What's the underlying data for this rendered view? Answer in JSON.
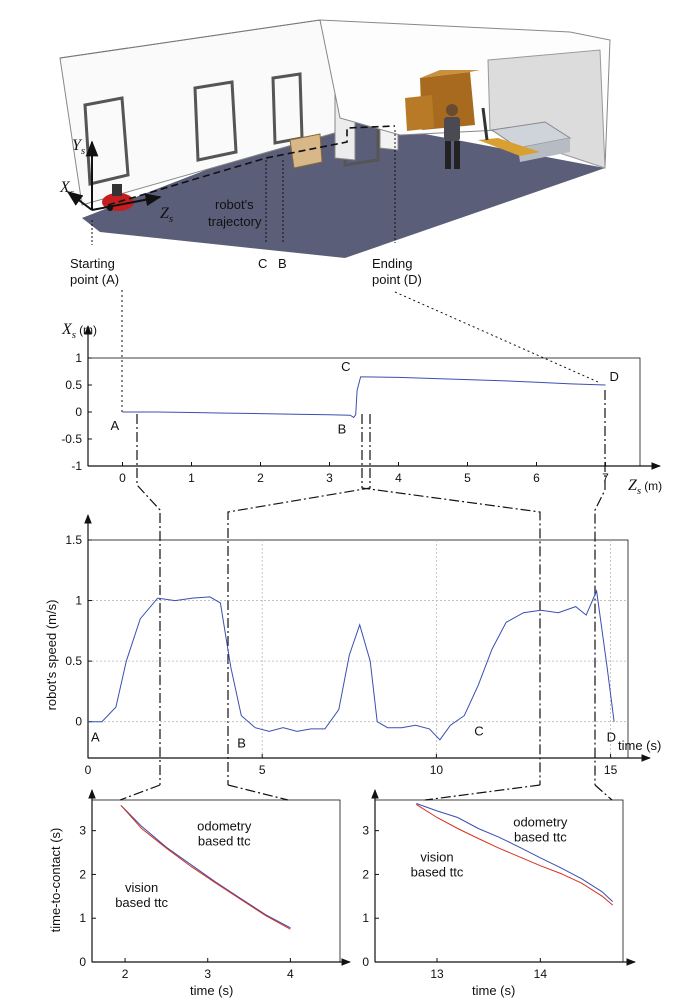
{
  "scene": {
    "axis_labels": {
      "x_base": "X",
      "y_base": "Y",
      "z_base": "Z",
      "subscript": "s"
    },
    "labels": {
      "trajectory_line1": "robot's",
      "trajectory_line2": "trajectory",
      "c": "C",
      "b": "B",
      "start_line1": "Starting",
      "start_line2": "point (A)",
      "end_line1": "Ending",
      "end_line2": "point (D)"
    }
  },
  "chart_data": [
    {
      "type": "line",
      "xlabel_base": "Z",
      "xlabel_sub": "s",
      "xlabel_unit": "(m)",
      "ylabel_base": "X",
      "ylabel_sub": "s",
      "ylabel_unit": "(m)",
      "xlim": [
        -0.5,
        7.5
      ],
      "ylim": [
        -1,
        1
      ],
      "xticks": [
        0,
        1,
        2,
        3,
        4,
        5,
        6,
        7
      ],
      "yticks": [
        -1,
        -0.5,
        0,
        0.5,
        1
      ],
      "grid": false,
      "series": [
        {
          "color": "#3a4fb0",
          "x": [
            0,
            0.5,
            1,
            1.5,
            2,
            2.5,
            3,
            3.3,
            3.35,
            3.38,
            3.4,
            3.45,
            3.5,
            4,
            4.5,
            5,
            5.5,
            6,
            6.5,
            7
          ],
          "y": [
            0,
            0,
            -0.01,
            -0.02,
            -0.03,
            -0.04,
            -0.05,
            -0.06,
            -0.1,
            -0.05,
            0.4,
            0.65,
            0.65,
            0.64,
            0.62,
            0.6,
            0.58,
            0.55,
            0.52,
            0.5
          ]
        }
      ],
      "annotations": [
        {
          "text": "A",
          "x": 0,
          "y": 0
        },
        {
          "text": "B",
          "x": 3.35,
          "y": -0.1
        },
        {
          "text": "C",
          "x": 3.4,
          "y": 0.65
        },
        {
          "text": "D",
          "x": 7,
          "y": 0.5
        }
      ]
    },
    {
      "type": "line",
      "xlabel": "time (s)",
      "ylabel": "robot's speed (m/s)",
      "xlim": [
        0,
        15.5
      ],
      "ylim": [
        -0.3,
        1.5
      ],
      "xticks": [
        0,
        5,
        10,
        15
      ],
      "yticks": [
        0,
        0.5,
        1,
        1.5
      ],
      "grid": true,
      "series": [
        {
          "color": "#3a4fb0",
          "x": [
            0,
            0.4,
            0.8,
            1.1,
            1.5,
            2,
            2.5,
            3,
            3.5,
            3.8,
            4.1,
            4.4,
            4.8,
            5.2,
            5.6,
            6,
            6.4,
            6.8,
            7.2,
            7.5,
            7.8,
            8.1,
            8.3,
            8.6,
            9,
            9.4,
            9.8,
            10.1,
            10.4,
            10.8,
            11.2,
            11.6,
            12,
            12.5,
            13,
            13.5,
            14,
            14.3,
            14.6,
            14.9,
            15.1
          ],
          "y": [
            0,
            0,
            0.12,
            0.5,
            0.85,
            1.02,
            1.0,
            1.02,
            1.03,
            0.98,
            0.45,
            0.05,
            -0.05,
            -0.08,
            -0.05,
            -0.08,
            -0.06,
            -0.06,
            0.1,
            0.55,
            0.8,
            0.5,
            0.0,
            -0.05,
            -0.05,
            -0.03,
            -0.06,
            -0.15,
            -0.03,
            0.05,
            0.3,
            0.6,
            0.82,
            0.9,
            0.92,
            0.9,
            0.95,
            0.88,
            1.08,
            0.45,
            0.0
          ]
        }
      ],
      "annotations": [
        {
          "text": "A",
          "x": 0.2,
          "y": 0
        },
        {
          "text": "B",
          "x": 4.4,
          "y": -0.05
        },
        {
          "text": "C",
          "x": 11.2,
          "y": 0.05
        },
        {
          "text": "D",
          "x": 15.0,
          "y": 0
        }
      ],
      "axis_end_label": "time (s)"
    },
    {
      "type": "line",
      "xlabel": "time (s)",
      "ylabel": "time-to-contact (s)",
      "xlim": [
        1.6,
        4.6
      ],
      "ylim": [
        0,
        3.7
      ],
      "xticks": [
        2,
        3,
        4
      ],
      "yticks": [
        0,
        1,
        2,
        3
      ],
      "grid": false,
      "series": [
        {
          "name": "odometry based ttc",
          "color": "#3a4fb0",
          "x": [
            1.95,
            2.2,
            2.5,
            2.8,
            3.1,
            3.4,
            3.7,
            4.0
          ],
          "y": [
            3.58,
            3.1,
            2.62,
            2.22,
            1.82,
            1.45,
            1.08,
            0.78
          ]
        },
        {
          "name": "vision based ttc",
          "color": "#d83020",
          "x": [
            1.95,
            2.2,
            2.5,
            2.8,
            3.1,
            3.4,
            3.7,
            4.0
          ],
          "y": [
            3.58,
            3.05,
            2.6,
            2.18,
            1.8,
            1.43,
            1.06,
            0.75
          ]
        }
      ],
      "annotations": [
        {
          "text_line1": "odometry",
          "text_line2": "based ttc",
          "x": 3.2,
          "y": 3.0
        },
        {
          "text_line1": "vision",
          "text_line2": "based ttc",
          "x": 2.2,
          "y": 1.6
        }
      ]
    },
    {
      "type": "line",
      "xlabel": "time (s)",
      "ylabel": "",
      "xlim": [
        12.4,
        14.8
      ],
      "ylim": [
        0,
        3.7
      ],
      "xticks": [
        13,
        14
      ],
      "yticks": [
        0,
        1,
        2,
        3
      ],
      "grid": false,
      "series": [
        {
          "name": "odometry based ttc",
          "color": "#3a4fb0",
          "x": [
            12.8,
            13.0,
            13.2,
            13.4,
            13.6,
            13.8,
            14.0,
            14.2,
            14.4,
            14.6,
            14.7
          ],
          "y": [
            3.62,
            3.45,
            3.3,
            3.05,
            2.85,
            2.62,
            2.38,
            2.15,
            1.9,
            1.6,
            1.38
          ]
        },
        {
          "name": "vision based ttc",
          "color": "#d83020",
          "x": [
            12.8,
            13.0,
            13.2,
            13.4,
            13.6,
            13.8,
            14.0,
            14.2,
            14.4,
            14.6,
            14.7
          ],
          "y": [
            3.6,
            3.3,
            3.05,
            2.82,
            2.6,
            2.4,
            2.2,
            2.02,
            1.8,
            1.5,
            1.3
          ]
        }
      ],
      "annotations": [
        {
          "text_line1": "odometry",
          "text_line2": "based ttc",
          "x": 14.0,
          "y": 3.1
        },
        {
          "text_line1": "vision",
          "text_line2": "based ttc",
          "x": 13.0,
          "y": 2.3
        }
      ]
    }
  ]
}
